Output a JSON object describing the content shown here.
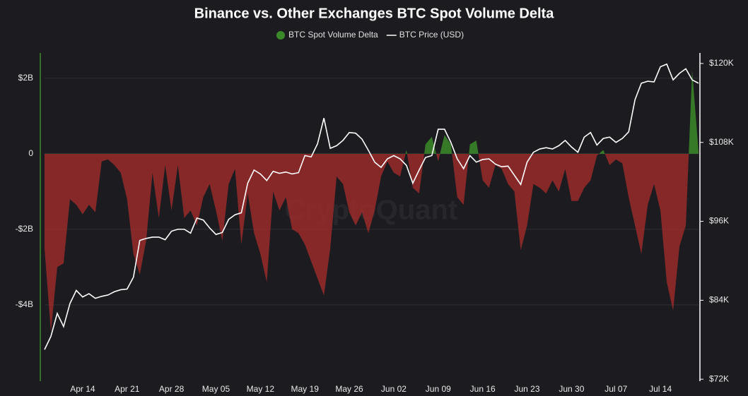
{
  "chart_data": {
    "type": "area_line",
    "title": "Binance vs. Other Exchanges BTC Spot Volume Delta",
    "watermark": "CryptoQuant",
    "categories": [
      null,
      null,
      null,
      null,
      null,
      null,
      "Apr 14",
      null,
      null,
      null,
      null,
      null,
      null,
      "Apr 21",
      null,
      null,
      null,
      null,
      null,
      null,
      "Apr 28",
      null,
      null,
      null,
      null,
      null,
      null,
      "May 05",
      null,
      null,
      null,
      null,
      null,
      null,
      "May 12",
      null,
      null,
      null,
      null,
      null,
      null,
      "May 19",
      null,
      null,
      null,
      null,
      null,
      null,
      "May 26",
      null,
      null,
      null,
      null,
      null,
      null,
      "Jun 02",
      null,
      null,
      null,
      null,
      null,
      null,
      "Jun 09",
      null,
      null,
      null,
      null,
      null,
      null,
      "Jun 16",
      null,
      null,
      null,
      null,
      null,
      null,
      "Jun 23",
      null,
      null,
      null,
      null,
      null,
      null,
      "Jun 30",
      null,
      null,
      null,
      null,
      null,
      null,
      "Jul 07",
      null,
      null,
      null,
      null,
      null,
      null,
      "Jul 14",
      null,
      null,
      null,
      null,
      null,
      null
    ],
    "series": [
      {
        "name": "BTC Spot Volume Delta",
        "type": "area",
        "color": "#3b8a2a",
        "negative_color": "#9a2a2a",
        "axis": "y",
        "values": [
          -2.5,
          -4.7,
          -3.0,
          -2.9,
          -1.2,
          -1.35,
          -1.6,
          -1.35,
          -1.55,
          -0.2,
          -0.15,
          -0.3,
          -0.5,
          -1.2,
          -2.65,
          -3.2,
          -2.3,
          -0.5,
          -1.7,
          -0.3,
          -1.5,
          -0.3,
          -1.7,
          -1.5,
          -1.9,
          -1.15,
          -0.8,
          -1.5,
          -2.3,
          -0.8,
          -0.4,
          -2.4,
          -1.05,
          -2.1,
          -2.65,
          -3.4,
          -1.0,
          -1.5,
          -1.15,
          -2.0,
          -2.1,
          -2.4,
          -2.85,
          -3.3,
          -3.75,
          -2.5,
          -0.6,
          -0.8,
          -1.55,
          -1.9,
          -1.55,
          -2.1,
          -1.5,
          -0.6,
          -0.2,
          -0.5,
          -0.6,
          0.1,
          -0.9,
          -1.05,
          0.25,
          0.45,
          -0.2,
          0.5,
          0.25,
          -1.15,
          -1.35,
          0.25,
          0.35,
          -0.7,
          -0.9,
          -0.3,
          -0.4,
          -0.8,
          -1.0,
          -2.55,
          -1.9,
          -0.8,
          -0.9,
          -1.05,
          -0.7,
          -1.0,
          -0.4,
          -1.25,
          -1.25,
          -0.9,
          -0.7,
          -0.05,
          0.1,
          -0.3,
          -0.15,
          -0.25,
          -1.15,
          -1.9,
          -2.65,
          -1.35,
          -0.8,
          -1.5,
          -3.4,
          -4.15,
          -2.45,
          -1.9,
          2.2,
          0.05
        ]
      },
      {
        "name": "BTC Price (USD)",
        "type": "line",
        "color": "#ffffff",
        "axis": "y2",
        "values": [
          76.5,
          78.5,
          82,
          80,
          83.5,
          85.5,
          84.5,
          85,
          84.3,
          84.6,
          84.8,
          85.3,
          85.6,
          85.7,
          87.5,
          93.1,
          93.4,
          93.6,
          93.6,
          93.2,
          94.5,
          94.8,
          94.8,
          94.2,
          96.5,
          96.2,
          95,
          94,
          94.3,
          96.3,
          97,
          97.3,
          101.8,
          103.8,
          103.2,
          102.2,
          103.6,
          103.3,
          103.5,
          103.2,
          103.4,
          106,
          105.8,
          107.8,
          111.7,
          107.1,
          107.5,
          108.3,
          109.5,
          109.4,
          108.5,
          106.8,
          105,
          104.2,
          105.5,
          106,
          105.5,
          104.5,
          101.8,
          103.8,
          105.7,
          106,
          110,
          110,
          108,
          105.5,
          104,
          106,
          105,
          105.4,
          105.5,
          104.7,
          104.3,
          104.4,
          103,
          101.6,
          105,
          106.5,
          107,
          107.2,
          107,
          107.5,
          108.3,
          107.3,
          106.5,
          108.8,
          109.5,
          107.6,
          108.6,
          108.8,
          108,
          108.6,
          109.6,
          114.5,
          117,
          117.3,
          117.2,
          119.5,
          119.9,
          117.5,
          118.5,
          119.2,
          117.5,
          117
        ]
      }
    ],
    "ylim": [
      -6.02,
      2.67
    ],
    "yticks": [
      {
        "value": 2,
        "label": "$2B"
      },
      0,
      {
        "value": -2,
        "label": "-$2B"
      },
      {
        "value": -4,
        "label": "-$4B"
      }
    ],
    "y2lim": [
      71.7,
      121.6
    ],
    "y2ticks": [
      {
        "value": 120,
        "label": "$120K"
      },
      {
        "value": 108,
        "label": "$108K"
      },
      {
        "value": 96,
        "label": "$96K"
      },
      {
        "value": 84,
        "label": "$84K"
      },
      {
        "value": 72,
        "label": "$72K"
      }
    ],
    "grid": true
  }
}
